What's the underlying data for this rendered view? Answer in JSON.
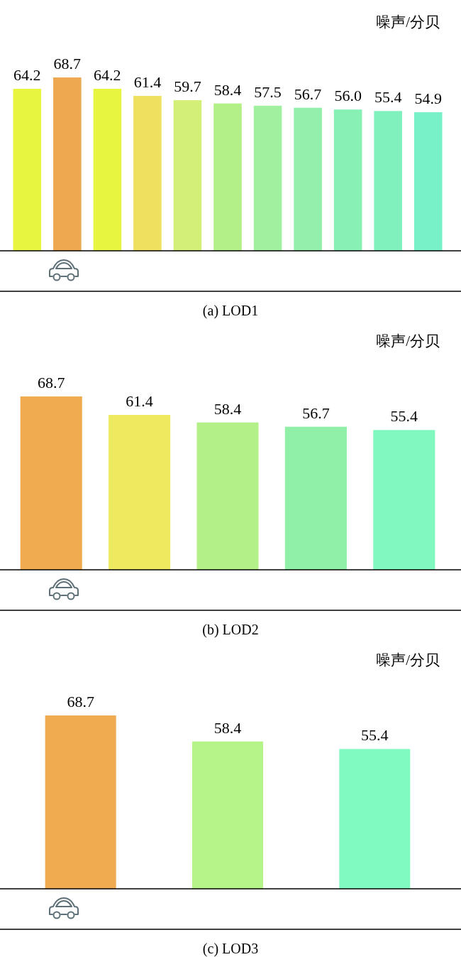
{
  "chart_data": [
    {
      "type": "bar",
      "title": "(a) LOD1",
      "ylabel": "噪声/分贝",
      "categories": [
        null,
        null,
        null,
        null,
        null,
        null,
        null,
        null,
        null,
        null,
        null
      ],
      "values": [
        64.2,
        68.7,
        64.2,
        61.4,
        59.7,
        58.4,
        57.5,
        56.7,
        56.0,
        55.4,
        54.9
      ],
      "value_labels": [
        "64.2",
        "68.7",
        "64.2",
        "61.4",
        "59.7",
        "58.4",
        "57.5",
        "56.7",
        "56.0",
        "55.4",
        "54.9"
      ],
      "colors": [
        "#e8f540",
        "#eea850",
        "#e8f540",
        "#f0e060",
        "#d4ef78",
        "#b4f088",
        "#a0f0a0",
        "#92f0ac",
        "#88f0b4",
        "#80f0bc",
        "#78f0c8"
      ]
    },
    {
      "type": "bar",
      "title": "(b) LOD2",
      "ylabel": "噪声/分贝",
      "categories": [
        null,
        null,
        null,
        null,
        null
      ],
      "values": [
        68.7,
        61.4,
        58.4,
        56.7,
        55.4
      ],
      "value_labels": [
        "68.7",
        "61.4",
        "58.4",
        "56.7",
        "55.4"
      ],
      "colors": [
        "#f0aa50",
        "#eeea60",
        "#b4f088",
        "#90f0a8",
        "#80f8c0"
      ]
    },
    {
      "type": "bar",
      "title": "(c) LOD3",
      "ylabel": "噪声/分贝",
      "categories": [
        null,
        null,
        null
      ],
      "values": [
        68.7,
        58.4,
        55.4
      ],
      "value_labels": [
        "68.7",
        "58.4",
        "55.4"
      ],
      "colors": [
        "#f0aa50",
        "#b4f488",
        "#80fac0"
      ]
    }
  ]
}
